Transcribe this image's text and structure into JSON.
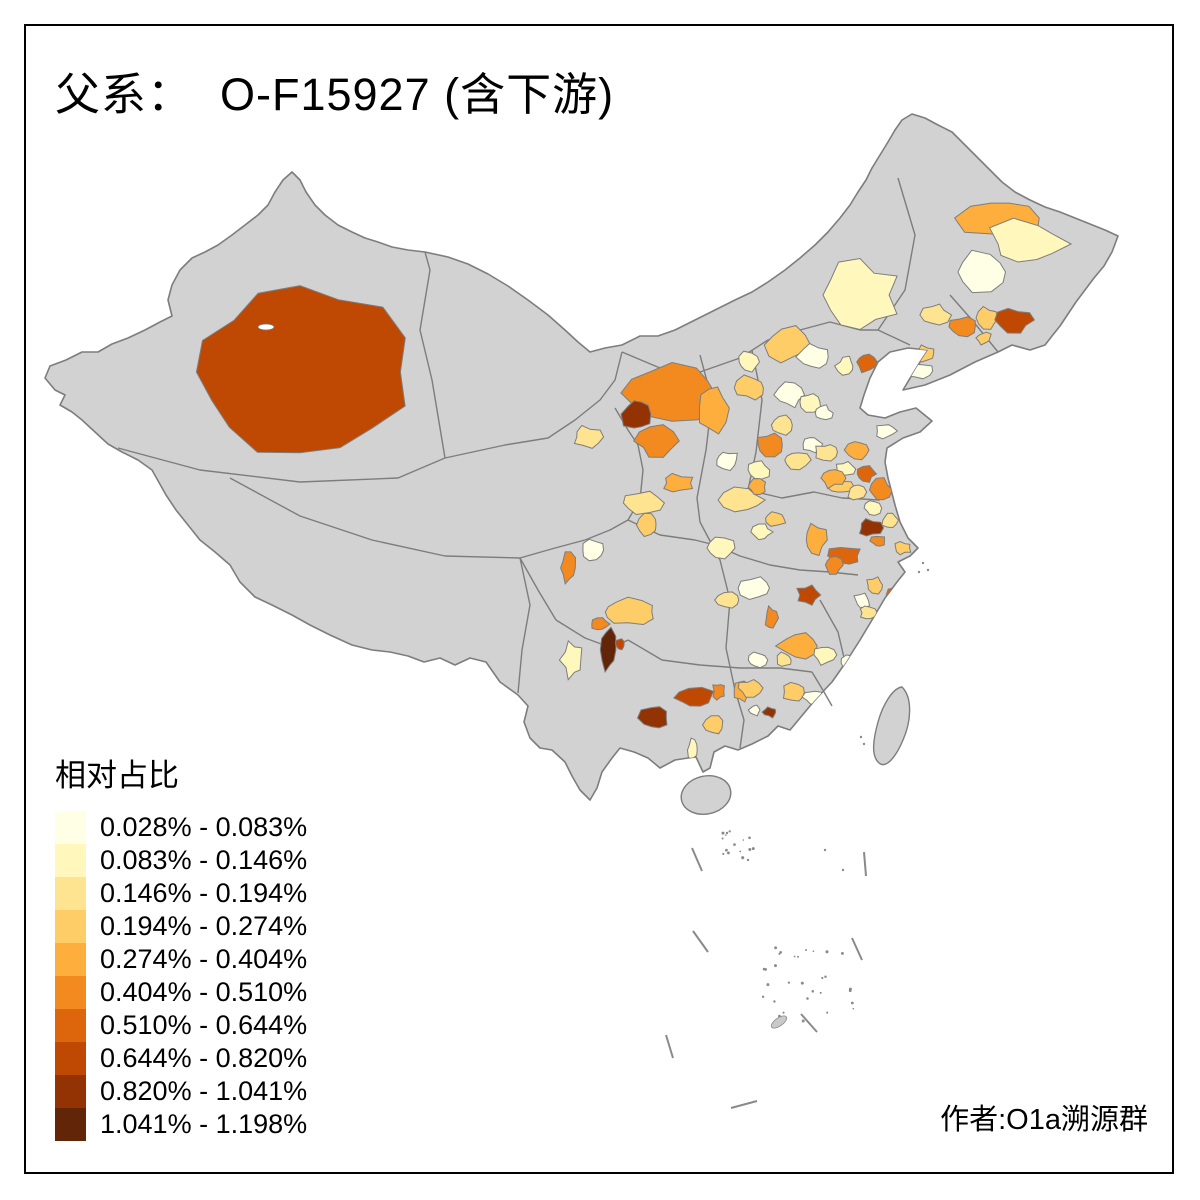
{
  "title": {
    "text": "父系：  O-F15927 (含下游)"
  },
  "legend": {
    "title": "相对占比",
    "classes": [
      {
        "label": "0.028% - 0.083%",
        "color": "#FFFFE5"
      },
      {
        "label": "0.083% - 0.146%",
        "color": "#FFF7BC"
      },
      {
        "label": "0.146% - 0.194%",
        "color": "#FEE391"
      },
      {
        "label": "0.194% - 0.274%",
        "color": "#FECD68"
      },
      {
        "label": "0.274% - 0.404%",
        "color": "#FDAE3C"
      },
      {
        "label": "0.404% - 0.510%",
        "color": "#F28A20"
      },
      {
        "label": "0.510% - 0.644%",
        "color": "#DD660D"
      },
      {
        "label": "0.644% - 0.820%",
        "color": "#BF4803"
      },
      {
        "label": "0.820% - 1.041%",
        "color": "#933304"
      },
      {
        "label": "1.041% - 1.198%",
        "color": "#622507"
      }
    ]
  },
  "credit": {
    "text": "作者:O1a溯源群"
  },
  "map": {
    "background": "#FFFFFF",
    "base_fill": "#D2D2D2",
    "border_color": "#7D7D7D",
    "frame_color": "#000000",
    "patch_format": "[cx, cy, rx, ry, legend_class_1_to_10, optional_vertices, optional_jitter]",
    "patches": [
      [
        300,
        372,
        105,
        82,
        8,
        16,
        0.25
      ],
      [
        1000,
        218,
        36,
        20,
        5
      ],
      [
        1028,
        244,
        38,
        22,
        2
      ],
      [
        982,
        272,
        26,
        18,
        1
      ],
      [
        935,
        315,
        13,
        10,
        3
      ],
      [
        963,
        327,
        13,
        9,
        6
      ],
      [
        987,
        318,
        10,
        10,
        4
      ],
      [
        1014,
        320,
        17,
        11,
        8
      ],
      [
        866,
        362,
        11,
        9,
        7
      ],
      [
        925,
        354,
        10,
        8,
        4
      ],
      [
        918,
        371,
        14,
        7,
        1
      ],
      [
        984,
        338,
        8,
        6,
        4
      ],
      [
        860,
        295,
        36,
        32,
        2,
        12,
        0.45
      ],
      [
        788,
        345,
        21,
        17,
        4
      ],
      [
        750,
        388,
        15,
        11,
        4
      ],
      [
        748,
        362,
        11,
        9,
        2
      ],
      [
        672,
        393,
        46,
        27,
        6,
        12,
        0.35
      ],
      [
        713,
        408,
        16,
        24,
        5
      ],
      [
        638,
        414,
        15,
        17,
        9
      ],
      [
        656,
        441,
        19,
        14,
        6
      ],
      [
        587,
        437,
        14,
        10,
        3
      ],
      [
        678,
        483,
        15,
        8,
        5
      ],
      [
        643,
        503,
        18,
        10,
        3
      ],
      [
        648,
        525,
        10,
        10,
        4
      ],
      [
        815,
        357,
        16,
        13,
        1
      ],
      [
        846,
        366,
        9,
        8,
        2
      ],
      [
        790,
        395,
        13,
        11,
        1
      ],
      [
        810,
        402,
        11,
        9,
        2
      ],
      [
        823,
        413,
        9,
        7,
        1
      ],
      [
        770,
        445,
        12,
        10,
        6
      ],
      [
        782,
        425,
        11,
        9,
        3
      ],
      [
        758,
        470,
        11,
        9,
        2
      ],
      [
        795,
        460,
        13,
        9,
        3
      ],
      [
        812,
        444,
        9,
        8,
        1
      ],
      [
        726,
        460,
        11,
        9,
        1
      ],
      [
        858,
        450,
        11,
        9,
        5
      ],
      [
        827,
        452,
        11,
        8,
        3
      ],
      [
        866,
        474,
        9,
        7,
        7
      ],
      [
        886,
        431,
        9,
        7,
        1
      ],
      [
        845,
        469,
        9,
        7,
        2
      ],
      [
        840,
        487,
        11,
        7,
        4
      ],
      [
        742,
        500,
        20,
        11,
        3
      ],
      [
        757,
        487,
        9,
        7,
        5
      ],
      [
        775,
        518,
        11,
        7,
        4
      ],
      [
        762,
        532,
        9,
        7,
        2
      ],
      [
        720,
        548,
        15,
        11,
        2
      ],
      [
        755,
        588,
        15,
        10,
        1
      ],
      [
        728,
        600,
        11,
        7,
        3
      ],
      [
        832,
        478,
        11,
        9,
        5
      ],
      [
        856,
        492,
        9,
        8,
        3
      ],
      [
        880,
        490,
        11,
        11,
        6
      ],
      [
        872,
        508,
        8,
        7,
        2
      ],
      [
        890,
        520,
        8,
        7,
        3
      ],
      [
        870,
        528,
        11,
        8,
        9
      ],
      [
        845,
        556,
        16,
        10,
        7
      ],
      [
        878,
        541,
        7,
        6,
        6
      ],
      [
        903,
        548,
        8,
        6,
        4
      ],
      [
        815,
        540,
        11,
        14,
        5
      ],
      [
        833,
        565,
        9,
        8,
        6
      ],
      [
        808,
        595,
        11,
        9,
        8
      ],
      [
        771,
        618,
        6,
        10,
        6
      ],
      [
        800,
        646,
        20,
        15,
        5
      ],
      [
        757,
        660,
        9,
        7,
        1
      ],
      [
        784,
        660,
        8,
        7,
        3
      ],
      [
        742,
        690,
        8,
        11,
        5
      ],
      [
        898,
        595,
        11,
        9,
        7
      ],
      [
        875,
        585,
        9,
        8,
        4
      ],
      [
        862,
        601,
        8,
        7,
        1
      ],
      [
        868,
        613,
        8,
        6,
        3
      ],
      [
        825,
        655,
        11,
        9,
        2
      ],
      [
        850,
        663,
        11,
        8,
        1
      ],
      [
        872,
        648,
        9,
        8,
        1
      ],
      [
        795,
        692,
        12,
        9,
        4
      ],
      [
        813,
        697,
        9,
        7,
        1
      ],
      [
        770,
        712,
        7,
        5,
        9
      ],
      [
        755,
        710,
        6,
        5,
        1
      ],
      [
        750,
        688,
        11,
        8,
        4
      ],
      [
        715,
        725,
        10,
        8,
        4
      ],
      [
        695,
        698,
        18,
        9,
        8
      ],
      [
        719,
        691,
        6,
        8,
        6
      ],
      [
        693,
        750,
        5,
        10,
        2
      ],
      [
        655,
        718,
        15,
        12,
        9
      ],
      [
        628,
        612,
        28,
        13,
        4,
        12,
        0.4
      ],
      [
        600,
        624,
        8,
        6,
        6
      ],
      [
        608,
        650,
        8,
        20,
        10
      ],
      [
        620,
        644,
        5,
        5,
        8
      ],
      [
        572,
        660,
        10,
        17,
        2
      ],
      [
        593,
        550,
        12,
        11,
        1
      ],
      [
        568,
        568,
        8,
        15,
        6
      ]
    ]
  }
}
